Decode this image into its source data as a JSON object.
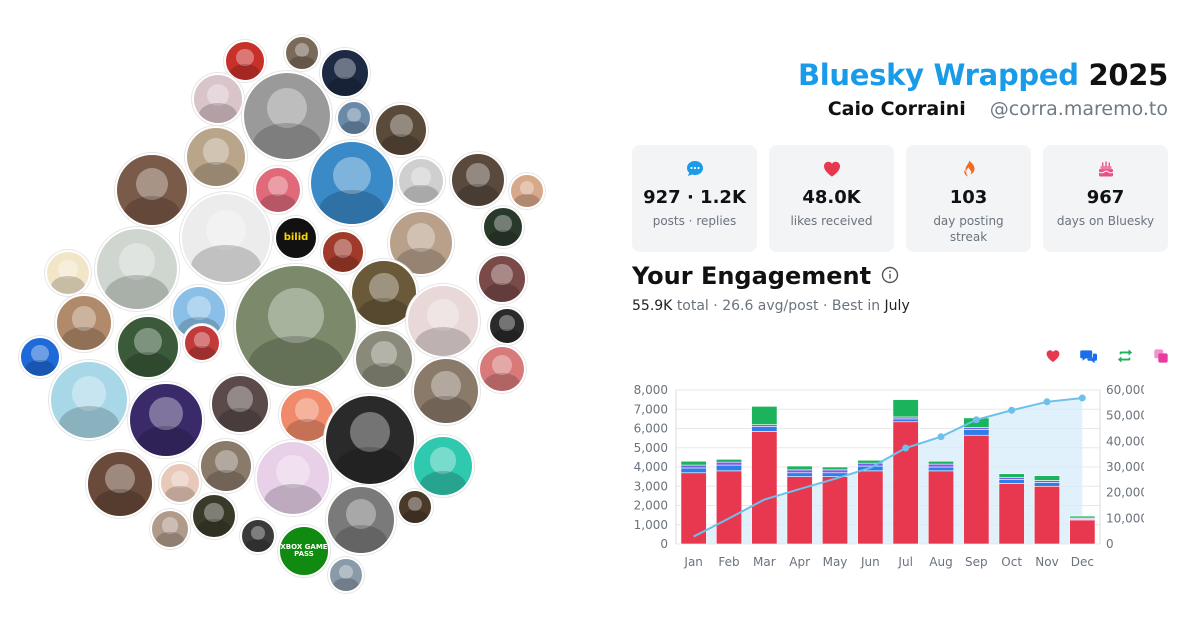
{
  "header": {
    "title_brand": "Bluesky Wrapped",
    "title_year": "2025",
    "user_name": "Caio Corraini",
    "user_handle": "@corra.maremo.to"
  },
  "stats": [
    {
      "icon": "speech-bubble-icon",
      "value": "927 · 1.2K",
      "label": "posts · replies",
      "color": "#1a9be8"
    },
    {
      "icon": "heart-icon",
      "value": "48.0K",
      "label": "likes received",
      "color": "#e8384f"
    },
    {
      "icon": "flame-icon",
      "value": "103",
      "label": "day posting streak",
      "color": "#f26b1d"
    },
    {
      "icon": "cake-icon",
      "value": "967",
      "label": "days on Bluesky",
      "color": "#e8508a"
    }
  ],
  "engagement": {
    "title": "Your Engagement",
    "total": "55.9K",
    "total_word": "total",
    "avg": "26.6 avg/post",
    "best_prefix": "Best in",
    "best_month": "July"
  },
  "legend": [
    {
      "icon": "heart-icon",
      "color": "#e8384f"
    },
    {
      "icon": "reply-bubbles-icon",
      "color": "#1a6fe8"
    },
    {
      "icon": "repost-arrows-icon",
      "color": "#1bb35c"
    },
    {
      "icon": "quote-squares-icon",
      "color": "#e83aa0"
    }
  ],
  "colors": {
    "likes": "#e8384f",
    "replies": "#2f7de8",
    "reposts": "#1bb35c",
    "quotes": "#7a5ae8",
    "cumulative_line": "#6cc0ea",
    "cumulative_area": "#d6ecfa"
  },
  "avatars": [
    {
      "color": "#c8302a"
    },
    {
      "color": "#7a6a5a"
    },
    {
      "color": "#1e2a44"
    },
    {
      "color": "#d9c4c9"
    },
    {
      "color": "#9a9a9a"
    },
    {
      "color": "#6a8aa8"
    },
    {
      "color": "#5a4a3a"
    },
    {
      "color": "#b9a58a"
    },
    {
      "color": "#7a5a48"
    },
    {
      "color": "#3a8ac8"
    },
    {
      "color": "#cfcfcf"
    },
    {
      "color": "#e06a7a"
    },
    {
      "color": "#5a4a3e"
    },
    {
      "color": "#d8a88a"
    },
    {
      "color": "#ececec"
    },
    {
      "color": "#b8a08a"
    },
    {
      "color": "#2a3a2a"
    },
    {
      "color": "#111111",
      "logo": "bilid",
      "logo_color": "#ffd400"
    },
    {
      "color": "#a03a2a"
    },
    {
      "color": "#cfd6cf"
    },
    {
      "color": "#f3e6c8"
    },
    {
      "color": "#6a5a3a"
    },
    {
      "color": "#7a8a6a"
    },
    {
      "color": "#7a4a48"
    },
    {
      "color": "#8ac0e8"
    },
    {
      "color": "#e8d8d8"
    },
    {
      "color": "#b08a6a"
    },
    {
      "color": "#3a5a3a"
    },
    {
      "color": "#2a2a2a"
    },
    {
      "color": "#d87a7a"
    },
    {
      "color": "#1e6ad8"
    },
    {
      "color": "#c23a3a"
    },
    {
      "color": "#8a8a7a"
    },
    {
      "color": "#a8d8e8"
    },
    {
      "color": "#3a2a6a"
    },
    {
      "color": "#5a4a4a"
    },
    {
      "color": "#f08a6a"
    },
    {
      "color": "#8a7a6a"
    },
    {
      "color": "#2a2a2a"
    },
    {
      "color": "#2fc9b0"
    },
    {
      "color": "#6a4a3a"
    },
    {
      "color": "#e8c8b8"
    },
    {
      "color": "#8a7a6a"
    },
    {
      "color": "#e8d0e8"
    },
    {
      "color": "#4a3a2a"
    },
    {
      "color": "#3a3a2a"
    },
    {
      "color": "#b09a8a"
    },
    {
      "color": "#3a3a3a"
    },
    {
      "color": "#7a7a7a"
    },
    {
      "color": "#108a10",
      "logo": "XBOX GAME PASS",
      "logo_color": "#ffffff"
    },
    {
      "color": "#8a9aa8"
    }
  ],
  "chart_data": {
    "type": "bar",
    "categories": [
      "Jan",
      "Feb",
      "Mar",
      "Apr",
      "May",
      "Jun",
      "Jul",
      "Aug",
      "Sep",
      "Oct",
      "Nov",
      "Dec"
    ],
    "series": [
      {
        "values": [
          3700,
          3800,
          5850,
          3500,
          3500,
          3800,
          6350,
          3800,
          5650,
          3150,
          3000,
          1250
        ]
      },
      {
        "values": [
          250,
          300,
          250,
          200,
          200,
          250,
          150,
          200,
          300,
          200,
          200,
          50
        ]
      },
      {
        "values": [
          150,
          150,
          100,
          150,
          150,
          150,
          100,
          150,
          100,
          100,
          100,
          50
        ]
      },
      {
        "values": [
          200,
          150,
          950,
          200,
          150,
          150,
          900,
          150,
          500,
          200,
          250,
          100
        ]
      }
    ],
    "cumulative": [
      2900,
      10000,
      17300,
      21400,
      25400,
      29700,
      37400,
      41800,
      48400,
      52100,
      55400,
      56900
    ],
    "y_left_ticks": [
      "0",
      "1,000",
      "2,000",
      "3,000",
      "4,000",
      "5,000",
      "6,000",
      "7,000",
      "8,000"
    ],
    "y_right_ticks": [
      "0",
      "10,000",
      "20,000",
      "30,000",
      "40,000",
      "50,000",
      "60,000"
    ],
    "ylim_left": [
      0,
      8000
    ],
    "ylim_right": [
      0,
      60000
    ],
    "grid": true
  }
}
